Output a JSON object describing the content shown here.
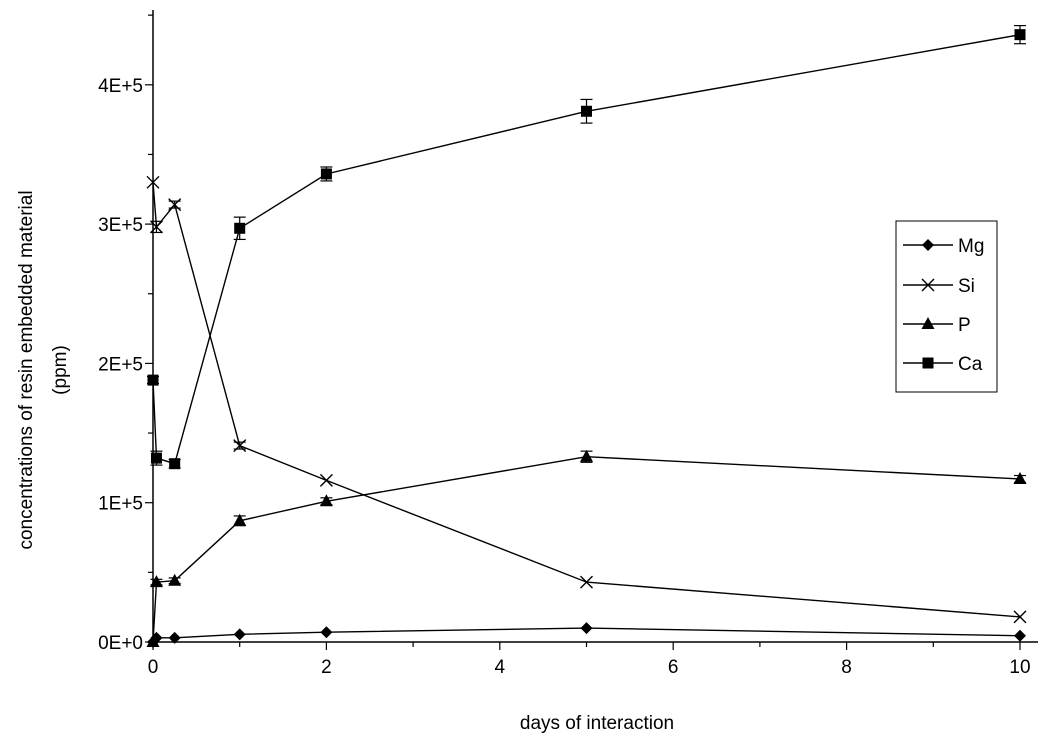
{
  "chart_data": {
    "type": "line",
    "title": "",
    "xlabel": "days of interaction",
    "ylabel_lines": [
      "concentrations of resin embedded material",
      "(ppm)"
    ],
    "xlim": [
      0,
      10
    ],
    "ylim": [
      0,
      450000
    ],
    "x_ticks": [
      0,
      2,
      4,
      6,
      8,
      10
    ],
    "x_tick_labels": [
      "0",
      "2",
      "4",
      "6",
      "8",
      "10"
    ],
    "y_ticks": [
      0,
      100000,
      200000,
      300000,
      400000
    ],
    "y_tick_labels": [
      "0E+0",
      "1E+5",
      "2E+5",
      "3E+5",
      "4E+5"
    ],
    "grid": false,
    "legend": "right",
    "series": [
      {
        "name": "Mg",
        "marker": "diamond",
        "points": [
          {
            "x": 0,
            "y": 0,
            "err": 0
          },
          {
            "x": 0.04,
            "y": 3000,
            "err": 0
          },
          {
            "x": 0.25,
            "y": 3000,
            "err": 0
          },
          {
            "x": 1,
            "y": 5500,
            "err": 0
          },
          {
            "x": 2,
            "y": 7000,
            "err": 0
          },
          {
            "x": 5,
            "y": 10000,
            "err": 0
          },
          {
            "x": 10,
            "y": 4500,
            "err": 0
          }
        ]
      },
      {
        "name": "Si",
        "marker": "x",
        "points": [
          {
            "x": 0,
            "y": 330000,
            "err": 0
          },
          {
            "x": 0.04,
            "y": 298000,
            "err": 4000
          },
          {
            "x": 0.25,
            "y": 314000,
            "err": 2500
          },
          {
            "x": 1,
            "y": 141000,
            "err": 2500
          },
          {
            "x": 2,
            "y": 116000,
            "err": 0
          },
          {
            "x": 5,
            "y": 43000,
            "err": 0
          },
          {
            "x": 10,
            "y": 18000,
            "err": 0
          }
        ]
      },
      {
        "name": "P",
        "marker": "triangle",
        "points": [
          {
            "x": 0,
            "y": 0,
            "err": 0
          },
          {
            "x": 0.04,
            "y": 43000,
            "err": 2000
          },
          {
            "x": 0.25,
            "y": 44000,
            "err": 2000
          },
          {
            "x": 1,
            "y": 87000,
            "err": 3500
          },
          {
            "x": 2,
            "y": 101000,
            "err": 2500
          },
          {
            "x": 5,
            "y": 133000,
            "err": 4000
          },
          {
            "x": 10,
            "y": 117000,
            "err": 2500
          }
        ]
      },
      {
        "name": "Ca",
        "marker": "square",
        "points": [
          {
            "x": 0,
            "y": 188000,
            "err": 2500
          },
          {
            "x": 0.04,
            "y": 132000,
            "err": 5000
          },
          {
            "x": 0.25,
            "y": 128000,
            "err": 3000
          },
          {
            "x": 1,
            "y": 297000,
            "err": 8000
          },
          {
            "x": 2,
            "y": 336000,
            "err": 5000
          },
          {
            "x": 5,
            "y": 381000,
            "err": 8500
          },
          {
            "x": 10,
            "y": 436000,
            "err": 6500
          }
        ]
      }
    ]
  }
}
